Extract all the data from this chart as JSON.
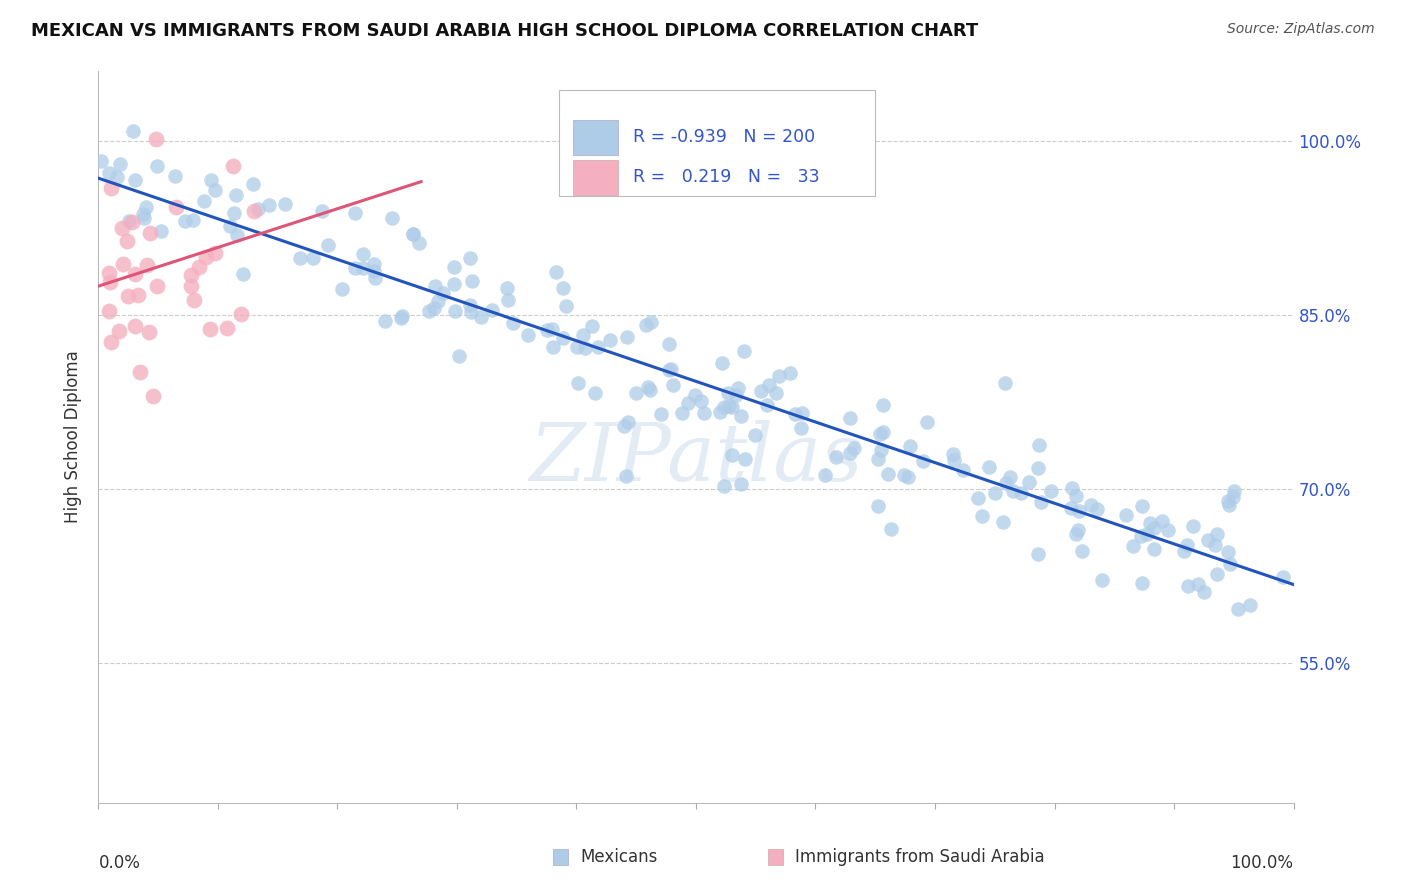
{
  "title": "MEXICAN VS IMMIGRANTS FROM SAUDI ARABIA HIGH SCHOOL DIPLOMA CORRELATION CHART",
  "source": "Source: ZipAtlas.com",
  "ylabel": "High School Diploma",
  "ytick_labels": [
    "55.0%",
    "70.0%",
    "85.0%",
    "100.0%"
  ],
  "ytick_values": [
    0.55,
    0.7,
    0.85,
    1.0
  ],
  "xlim": [
    0.0,
    1.0
  ],
  "ylim": [
    0.43,
    1.06
  ],
  "legend_blue_R": "-0.939",
  "legend_blue_N": "200",
  "legend_pink_R": "0.219",
  "legend_pink_N": "33",
  "legend_blue_label": "Mexicans",
  "legend_pink_label": "Immigrants from Saudi Arabia",
  "blue_scatter_color": "#aecce8",
  "pink_scatter_color": "#f4afc0",
  "blue_line_color": "#2255bb",
  "pink_line_color": "#dd5577",
  "background_color": "#ffffff",
  "blue_trend_x0": 0.0,
  "blue_trend_x1": 1.0,
  "blue_trend_y0": 0.968,
  "blue_trend_y1": 0.618,
  "pink_trend_x0": 0.0,
  "pink_trend_x1": 0.27,
  "pink_trend_y0": 0.875,
  "pink_trend_y1": 0.965,
  "watermark": "ZIPatlas",
  "grid_color": "#cccccc",
  "grid_style": "--",
  "legend_box_color": "#ffffff",
  "legend_box_edge": "#cccccc",
  "text_color_blue": "#3355cc",
  "text_color_dark": "#333333"
}
